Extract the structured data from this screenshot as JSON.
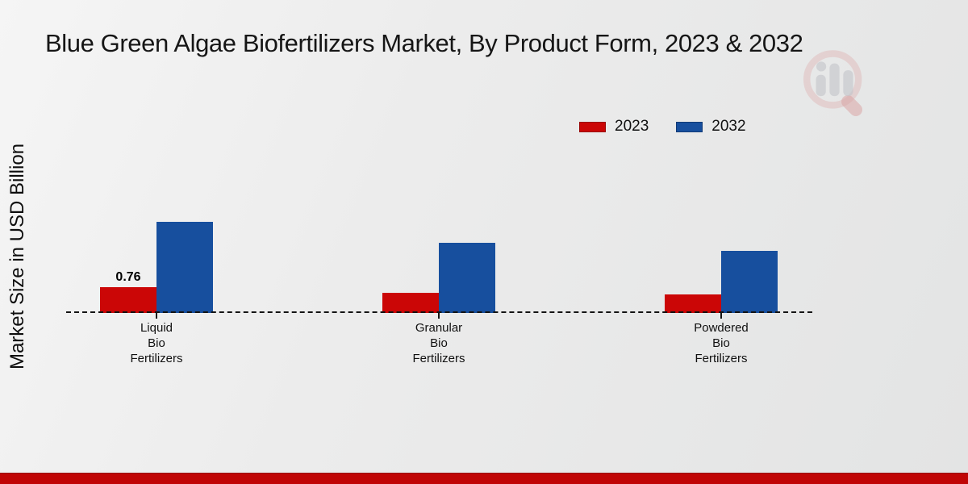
{
  "chart_data": {
    "type": "bar",
    "title": "Blue Green Algae Biofertilizers Market, By Product Form, 2023 & 2032",
    "xlabel": "",
    "ylabel": "Market Size in USD Billion",
    "categories": [
      "Liquid Bio Fertilizers",
      "Granular Bio Fertilizers",
      "Powdered Bio Fertilizers"
    ],
    "categories_multiline": [
      [
        "Liquid",
        "Bio",
        "Fertilizers"
      ],
      [
        "Granular",
        "Bio",
        "Fertilizers"
      ],
      [
        "Powdered",
        "Bio",
        "Fertilizers"
      ]
    ],
    "series": [
      {
        "name": "2023",
        "color": "#cb0606",
        "values": [
          0.76,
          0.58,
          0.54
        ]
      },
      {
        "name": "2032",
        "color": "#174f9e",
        "values": [
          2.65,
          2.05,
          1.82
        ]
      }
    ],
    "annotations": [
      {
        "series_index": 0,
        "category_index": 0,
        "text": "0.76"
      }
    ],
    "ylim": [
      0,
      3
    ],
    "grid": false,
    "y_axis_ticks_visible": false,
    "baseline_style": "dashed",
    "legend_position": "top-right"
  },
  "footer": {
    "bar_color": "#c00505"
  }
}
